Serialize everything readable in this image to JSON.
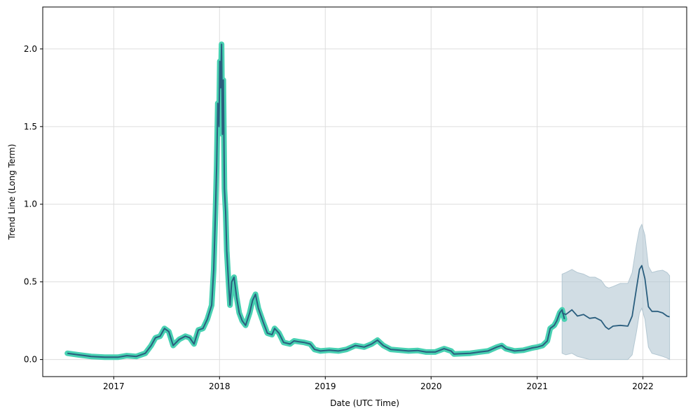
{
  "chart_data": {
    "type": "line",
    "title": "",
    "xlabel": "Date (UTC Time)",
    "ylabel": "Trend Line (Long Term)",
    "xlim": [
      "2016-05-01",
      "2022-06-01"
    ],
    "ylim": [
      -0.11,
      2.27
    ],
    "grid": true,
    "x_ticks": [
      "2017-01-01",
      "2018-01-01",
      "2019-01-01",
      "2020-01-01",
      "2021-01-01",
      "2022-01-01"
    ],
    "x_tick_labels": [
      "2017",
      "2018",
      "2019",
      "2020",
      "2021",
      "2022"
    ],
    "y_ticks": [
      0.0,
      0.5,
      1.0,
      1.5,
      2.0
    ],
    "y_tick_labels": [
      "0.0",
      "0.5",
      "1.0",
      "1.5",
      "2.0"
    ],
    "colors": {
      "history_glow": "#48d1b2",
      "line": "#2a5e7e",
      "forecast_band": "#b3c7d2",
      "grid": "#dddddd"
    },
    "series": [
      {
        "kind": "history",
        "points": [
          [
            "2016-07-25",
            0.04
          ],
          [
            "2016-09-01",
            0.03
          ],
          [
            "2016-10-15",
            0.02
          ],
          [
            "2016-12-01",
            0.015
          ],
          [
            "2017-01-15",
            0.015
          ],
          [
            "2017-02-15",
            0.025
          ],
          [
            "2017-03-20",
            0.02
          ],
          [
            "2017-04-20",
            0.04
          ],
          [
            "2017-05-10",
            0.09
          ],
          [
            "2017-05-25",
            0.14
          ],
          [
            "2017-06-10",
            0.15
          ],
          [
            "2017-06-25",
            0.2
          ],
          [
            "2017-07-10",
            0.18
          ],
          [
            "2017-07-25",
            0.09
          ],
          [
            "2017-08-15",
            0.13
          ],
          [
            "2017-09-05",
            0.15
          ],
          [
            "2017-09-20",
            0.14
          ],
          [
            "2017-10-05",
            0.1
          ],
          [
            "2017-10-20",
            0.19
          ],
          [
            "2017-11-05",
            0.2
          ],
          [
            "2017-11-20",
            0.26
          ],
          [
            "2017-12-05",
            0.35
          ],
          [
            "2017-12-12",
            0.58
          ],
          [
            "2017-12-18",
            0.95
          ],
          [
            "2017-12-22",
            1.25
          ],
          [
            "2017-12-26",
            1.65
          ],
          [
            "2017-12-30",
            1.5
          ],
          [
            "2018-01-02",
            1.92
          ],
          [
            "2018-01-05",
            1.75
          ],
          [
            "2018-01-08",
            2.03
          ],
          [
            "2018-01-11",
            1.45
          ],
          [
            "2018-01-14",
            1.8
          ],
          [
            "2018-01-18",
            1.1
          ],
          [
            "2018-01-22",
            0.95
          ],
          [
            "2018-01-26",
            0.7
          ],
          [
            "2018-02-01",
            0.5
          ],
          [
            "2018-02-06",
            0.35
          ],
          [
            "2018-02-12",
            0.5
          ],
          [
            "2018-02-20",
            0.53
          ],
          [
            "2018-03-01",
            0.4
          ],
          [
            "2018-03-10",
            0.3
          ],
          [
            "2018-03-20",
            0.25
          ],
          [
            "2018-04-01",
            0.22
          ],
          [
            "2018-04-15",
            0.3
          ],
          [
            "2018-04-25",
            0.38
          ],
          [
            "2018-05-05",
            0.42
          ],
          [
            "2018-05-15",
            0.33
          ],
          [
            "2018-06-01",
            0.24
          ],
          [
            "2018-06-15",
            0.17
          ],
          [
            "2018-07-01",
            0.16
          ],
          [
            "2018-07-10",
            0.2
          ],
          [
            "2018-07-25",
            0.17
          ],
          [
            "2018-08-10",
            0.11
          ],
          [
            "2018-09-01",
            0.1
          ],
          [
            "2018-09-15",
            0.12
          ],
          [
            "2018-10-01",
            0.115
          ],
          [
            "2018-10-20",
            0.11
          ],
          [
            "2018-11-10",
            0.1
          ],
          [
            "2018-11-25",
            0.065
          ],
          [
            "2018-12-15",
            0.055
          ],
          [
            "2019-01-15",
            0.06
          ],
          [
            "2019-02-15",
            0.055
          ],
          [
            "2019-03-15",
            0.065
          ],
          [
            "2019-04-15",
            0.09
          ],
          [
            "2019-05-15",
            0.08
          ],
          [
            "2019-06-10",
            0.1
          ],
          [
            "2019-06-30",
            0.125
          ],
          [
            "2019-07-20",
            0.09
          ],
          [
            "2019-08-15",
            0.065
          ],
          [
            "2019-09-15",
            0.06
          ],
          [
            "2019-10-15",
            0.055
          ],
          [
            "2019-11-15",
            0.058
          ],
          [
            "2019-12-15",
            0.048
          ],
          [
            "2020-01-15",
            0.048
          ],
          [
            "2020-02-15",
            0.07
          ],
          [
            "2020-03-10",
            0.055
          ],
          [
            "2020-03-20",
            0.035
          ],
          [
            "2020-04-15",
            0.038
          ],
          [
            "2020-05-15",
            0.04
          ],
          [
            "2020-06-15",
            0.048
          ],
          [
            "2020-07-15",
            0.055
          ],
          [
            "2020-08-15",
            0.08
          ],
          [
            "2020-09-01",
            0.09
          ],
          [
            "2020-09-15",
            0.07
          ],
          [
            "2020-10-15",
            0.055
          ],
          [
            "2020-11-15",
            0.06
          ],
          [
            "2020-12-15",
            0.075
          ],
          [
            "2021-01-01",
            0.08
          ],
          [
            "2021-01-20",
            0.09
          ],
          [
            "2021-02-05",
            0.12
          ],
          [
            "2021-02-15",
            0.2
          ],
          [
            "2021-03-01",
            0.22
          ],
          [
            "2021-03-10",
            0.25
          ],
          [
            "2021-03-20",
            0.3
          ],
          [
            "2021-03-28",
            0.32
          ],
          [
            "2021-04-05",
            0.26
          ]
        ]
      },
      {
        "kind": "forecast",
        "points": [
          [
            "2021-03-28",
            0.3
          ],
          [
            "2021-04-10",
            0.29
          ],
          [
            "2021-05-01",
            0.32
          ],
          [
            "2021-05-20",
            0.28
          ],
          [
            "2021-06-10",
            0.29
          ],
          [
            "2021-07-01",
            0.265
          ],
          [
            "2021-07-20",
            0.27
          ],
          [
            "2021-08-10",
            0.25
          ],
          [
            "2021-08-25",
            0.21
          ],
          [
            "2021-09-05",
            0.195
          ],
          [
            "2021-09-20",
            0.215
          ],
          [
            "2021-10-15",
            0.22
          ],
          [
            "2021-11-10",
            0.215
          ],
          [
            "2021-11-25",
            0.28
          ],
          [
            "2021-12-10",
            0.46
          ],
          [
            "2021-12-20",
            0.58
          ],
          [
            "2021-12-28",
            0.605
          ],
          [
            "2022-01-08",
            0.52
          ],
          [
            "2022-01-20",
            0.34
          ],
          [
            "2022-02-01",
            0.31
          ],
          [
            "2022-02-20",
            0.31
          ],
          [
            "2022-03-10",
            0.3
          ],
          [
            "2022-03-25",
            0.28
          ],
          [
            "2022-04-03",
            0.275
          ]
        ],
        "upper": [
          [
            "2021-03-28",
            0.55
          ],
          [
            "2021-04-10",
            0.56
          ],
          [
            "2021-05-01",
            0.58
          ],
          [
            "2021-05-20",
            0.56
          ],
          [
            "2021-06-10",
            0.55
          ],
          [
            "2021-07-01",
            0.53
          ],
          [
            "2021-07-20",
            0.53
          ],
          [
            "2021-08-10",
            0.51
          ],
          [
            "2021-08-25",
            0.47
          ],
          [
            "2021-09-05",
            0.46
          ],
          [
            "2021-09-20",
            0.47
          ],
          [
            "2021-10-15",
            0.49
          ],
          [
            "2021-11-10",
            0.49
          ],
          [
            "2021-11-25",
            0.56
          ],
          [
            "2021-12-10",
            0.74
          ],
          [
            "2021-12-20",
            0.84
          ],
          [
            "2021-12-28",
            0.87
          ],
          [
            "2022-01-08",
            0.8
          ],
          [
            "2022-01-20",
            0.6
          ],
          [
            "2022-02-01",
            0.56
          ],
          [
            "2022-02-20",
            0.57
          ],
          [
            "2022-03-10",
            0.575
          ],
          [
            "2022-03-25",
            0.56
          ],
          [
            "2022-04-03",
            0.54
          ]
        ],
        "lower": [
          [
            "2021-03-28",
            0.04
          ],
          [
            "2021-04-10",
            0.03
          ],
          [
            "2021-05-01",
            0.04
          ],
          [
            "2021-05-20",
            0.02
          ],
          [
            "2021-06-10",
            0.01
          ],
          [
            "2021-07-01",
            0.0
          ],
          [
            "2021-07-20",
            0.0
          ],
          [
            "2021-08-10",
            0.0
          ],
          [
            "2021-08-25",
            0.0
          ],
          [
            "2021-09-05",
            0.0
          ],
          [
            "2021-09-20",
            0.0
          ],
          [
            "2021-10-15",
            0.0
          ],
          [
            "2021-11-10",
            0.0
          ],
          [
            "2021-11-25",
            0.03
          ],
          [
            "2021-12-10",
            0.18
          ],
          [
            "2021-12-20",
            0.3
          ],
          [
            "2021-12-28",
            0.33
          ],
          [
            "2022-01-08",
            0.26
          ],
          [
            "2022-01-20",
            0.08
          ],
          [
            "2022-02-01",
            0.04
          ],
          [
            "2022-02-20",
            0.03
          ],
          [
            "2022-03-10",
            0.02
          ],
          [
            "2022-03-25",
            0.01
          ],
          [
            "2022-04-03",
            0.0
          ]
        ]
      }
    ]
  }
}
